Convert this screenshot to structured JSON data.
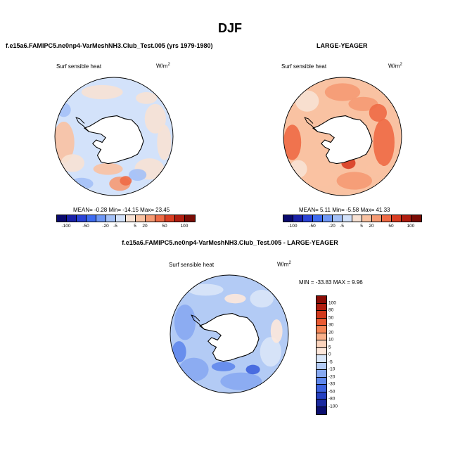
{
  "season_title": "DJF",
  "panels": [
    {
      "title": "f.e15a6.FAMIPC5.ne0np4-VarMeshNH3.Club_Test.005 (yrs 1979-1980)",
      "variable": "Surf sensible heat",
      "units": "W/m",
      "units_exp": "2",
      "stats": "MEAN=  -0.28  Min= -14.15  Max=  23.45"
    },
    {
      "title": "LARGE-YEAGER",
      "variable": "Surf sensible heat",
      "units": "W/m",
      "units_exp": "2",
      "stats": "MEAN=  5.11  Min=  -5.58  Max=  41.33"
    },
    {
      "title": "f.e15a6.FAMIPC5.ne0np4-VarMeshNH3.Club_Test.005 - LARGE-YEAGER",
      "variable": "Surf sensible heat",
      "units": "W/m",
      "units_exp": "2",
      "stats": "MIN = -33.83 MAX =   9.96"
    }
  ],
  "colors": {
    "land": "#ffffff",
    "coast": "#000000",
    "abs_scale": [
      "#0a0a6e",
      "#1a22a8",
      "#2b44d6",
      "#3f6cf0",
      "#6f98f5",
      "#a4c1f7",
      "#d3e2fa",
      "#f7e2d4",
      "#f9c2a2",
      "#f59a73",
      "#ee6a45",
      "#d83d22",
      "#b01e10",
      "#7a0c05"
    ],
    "diff_scale": [
      "#8a0c06",
      "#b01e10",
      "#d2391c",
      "#ea5a32",
      "#f58556",
      "#f9b08a",
      "#fbd4bd",
      "#fde8dc",
      "#d9e6f8",
      "#b3cbf5",
      "#87a9f2",
      "#5f87ec",
      "#3d62de",
      "#2641c2",
      "#1a2aa0",
      "#0b0f70"
    ]
  },
  "chart_data": [
    {
      "type": "heatmap",
      "projection": "south-polar-stereographic",
      "title": "f.e15a6.FAMIPC5.ne0np4-VarMeshNH3.Club_Test.005 (yrs 1979-1980)",
      "variable": "Surf sensible heat",
      "units": "W/m2",
      "mean": -0.28,
      "min": -14.15,
      "max": 23.45,
      "colorbar_levels": [
        -100,
        -50,
        -20,
        -5,
        5,
        20,
        50,
        100
      ],
      "colorbar_labels": [
        "-100",
        "-50",
        "-20",
        "-5",
        "5",
        "20",
        "50",
        "100"
      ]
    },
    {
      "type": "heatmap",
      "projection": "south-polar-stereographic",
      "title": "LARGE-YEAGER",
      "variable": "Surf sensible heat",
      "units": "W/m2",
      "mean": 5.11,
      "min": -5.58,
      "max": 41.33,
      "colorbar_levels": [
        -100,
        -50,
        -20,
        -5,
        5,
        20,
        50,
        100
      ],
      "colorbar_labels": [
        "-100",
        "-50",
        "-20",
        "-5",
        "5",
        "20",
        "50",
        "100"
      ]
    },
    {
      "type": "heatmap",
      "projection": "south-polar-stereographic",
      "title": "f.e15a6.FAMIPC5.ne0np4-VarMeshNH3.Club_Test.005 - LARGE-YEAGER",
      "variable": "Surf sensible heat",
      "units": "W/m2",
      "min": -33.83,
      "max": 9.96,
      "colorbar_levels": [
        100,
        80,
        50,
        30,
        20,
        10,
        5,
        0,
        -5,
        -10,
        -20,
        -30,
        -50,
        -80,
        -100
      ],
      "colorbar_labels": [
        "100",
        "80",
        "50",
        "30",
        "20",
        "10",
        "5",
        "0",
        "-5",
        "-10",
        "-20",
        "-30",
        "-50",
        "-80",
        "-100"
      ]
    }
  ]
}
